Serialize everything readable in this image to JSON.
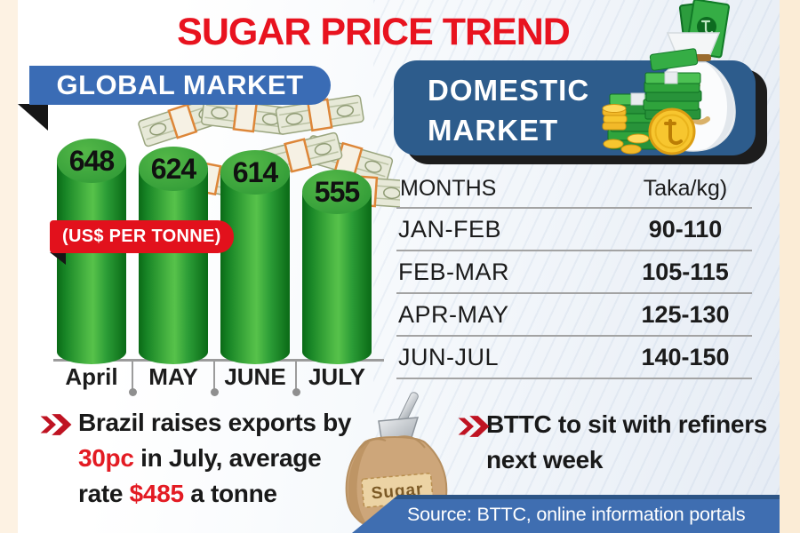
{
  "title": "SUGAR PRICE TREND",
  "global_market": {
    "banner_label": "GLOBAL MARKET",
    "unit_badge": "(US$ PER TONNE)"
  },
  "domestic_market": {
    "banner_line1": "DOMESTIC",
    "banner_line2": "MARKET",
    "table": {
      "col_month": "MONTHS",
      "col_price": "Taka/kg)",
      "rows": [
        {
          "months": "JAN-FEB",
          "price": "90-110"
        },
        {
          "months": "FEB-MAR",
          "price": "105-115"
        },
        {
          "months": "APR-MAY",
          "price": "125-130"
        },
        {
          "months": "JUN-JUL",
          "price": "140-150"
        }
      ]
    }
  },
  "chart_data": [
    {
      "type": "bar",
      "title": "GLOBAL MARKET",
      "categories": [
        "April",
        "MAY",
        "JUNE",
        "JULY"
      ],
      "values": [
        648,
        624,
        614,
        555
      ],
      "unit_label": "(US$ PER TONNE)",
      "ylabel": "US$ per tonne",
      "ylim": [
        0,
        700
      ],
      "data_labels": true,
      "grid": false,
      "bar_color": "#2fa136"
    },
    {
      "type": "table",
      "title": "DOMESTIC MARKET",
      "columns": [
        "MONTHS",
        "Taka/kg)"
      ],
      "rows": [
        [
          "JAN-FEB",
          "90-110"
        ],
        [
          "FEB-MAR",
          "105-115"
        ],
        [
          "APR-MAY",
          "125-130"
        ],
        [
          "JUN-JUL",
          "140-150"
        ]
      ]
    }
  ],
  "notes": {
    "left": {
      "lines": [
        [
          {
            "t": "Brazil raises exports by"
          }
        ],
        [
          {
            "t": "30pc",
            "red": true
          },
          {
            "t": " in July, average"
          }
        ],
        [
          {
            "t": "rate "
          },
          {
            "t": "$485",
            "red": true
          },
          {
            "t": " a tonne"
          }
        ]
      ]
    },
    "right": {
      "lines": [
        [
          {
            "t": "BTTC to sit with refiners"
          }
        ],
        [
          {
            "t": "next week"
          }
        ]
      ]
    }
  },
  "illustrations": {
    "sack_label": "Sugar",
    "taka_symbol": "৳",
    "icons": [
      "money-pile-icon",
      "money-bag-icon",
      "bill-stack-icon",
      "coin-stack-icon",
      "taka-coin-icon",
      "sugar-sack-icon",
      "scoop-icon",
      "chevrons-icon"
    ]
  },
  "source": "Source: BTTC, online information portals",
  "colors": {
    "title_red": "#e8131f",
    "accent_red": "#e31b23",
    "chevron_red": "#bf1322",
    "global_banner_blue": "#3a6cb5",
    "domestic_banner_blue": "#2d5c8c",
    "source_bar_blue": "#3f6eb1",
    "bar_green": "#2fa136",
    "coin_gold": "#f7c62f",
    "border_cream": "#fdf2e3"
  }
}
